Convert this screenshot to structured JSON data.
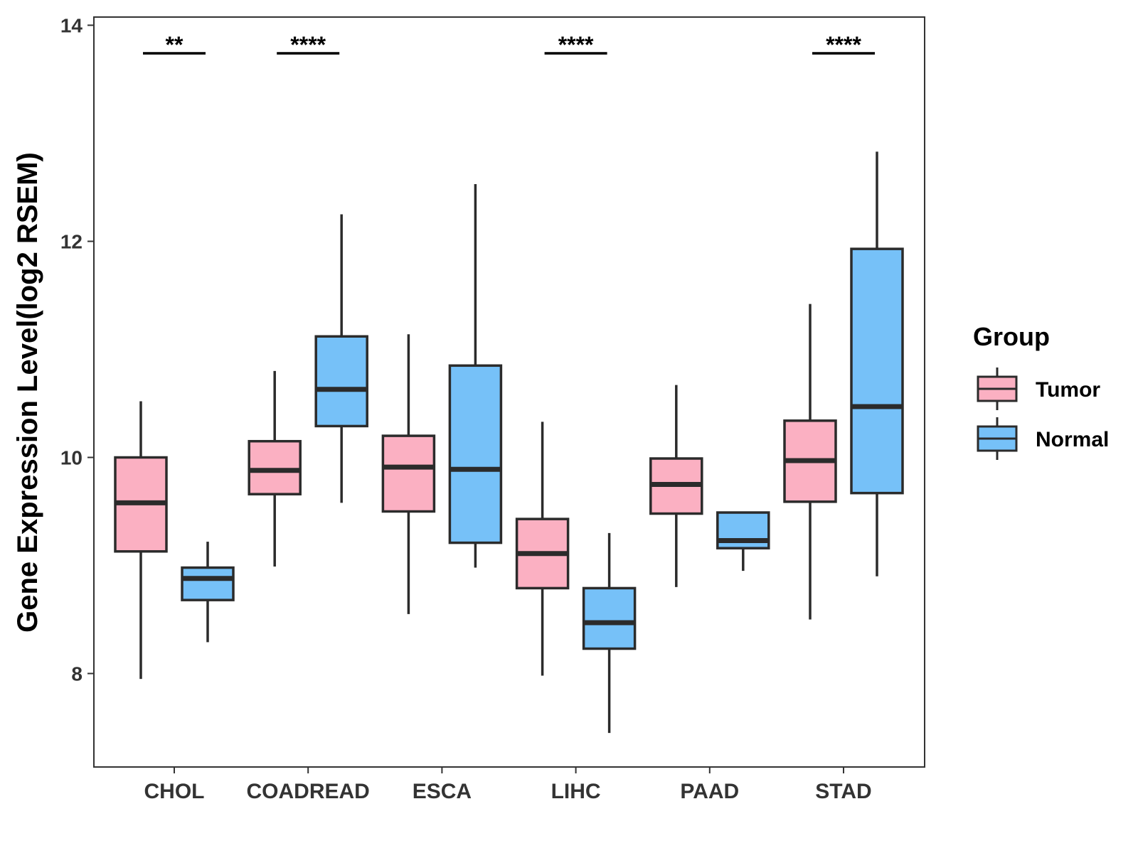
{
  "chart_data": {
    "type": "boxplot",
    "title": "",
    "xlabel": "",
    "ylabel": "Gene Expression Level(log2 RSEM)",
    "ylim": [
      7.2,
      14.1
    ],
    "yticks": [
      8,
      10,
      12,
      14
    ],
    "categories": [
      "CHOL",
      "COADREAD",
      "ESCA",
      "LIHC",
      "PAAD",
      "STAD"
    ],
    "legend": {
      "title": "Group",
      "position": "right",
      "items": [
        {
          "name": "Tumor",
          "color": "#fbb0c2"
        },
        {
          "name": "Normal",
          "color": "#76c1f8"
        }
      ]
    },
    "series": [
      {
        "name": "Tumor",
        "color": "#fbb0c2",
        "boxes": [
          {
            "category": "CHOL",
            "min": 7.95,
            "q1": 9.13,
            "median": 9.58,
            "q3": 10.0,
            "max": 10.52
          },
          {
            "category": "COADREAD",
            "min": 8.99,
            "q1": 9.66,
            "median": 9.88,
            "q3": 10.15,
            "max": 10.8
          },
          {
            "category": "ESCA",
            "min": 8.55,
            "q1": 9.5,
            "median": 9.91,
            "q3": 10.2,
            "max": 11.14
          },
          {
            "category": "LIHC",
            "min": 7.98,
            "q1": 8.79,
            "median": 9.11,
            "q3": 9.43,
            "max": 10.33
          },
          {
            "category": "PAAD",
            "min": 8.8,
            "q1": 9.48,
            "median": 9.75,
            "q3": 9.99,
            "max": 10.67
          },
          {
            "category": "STAD",
            "min": 8.5,
            "q1": 9.59,
            "median": 9.97,
            "q3": 10.34,
            "max": 11.42
          }
        ]
      },
      {
        "name": "Normal",
        "color": "#76c1f8",
        "boxes": [
          {
            "category": "CHOL",
            "min": 8.29,
            "q1": 8.68,
            "median": 8.88,
            "q3": 8.98,
            "max": 9.22
          },
          {
            "category": "COADREAD",
            "min": 9.58,
            "q1": 10.29,
            "median": 10.63,
            "q3": 11.12,
            "max": 12.25
          },
          {
            "category": "ESCA",
            "min": 8.98,
            "q1": 9.21,
            "median": 9.89,
            "q3": 10.85,
            "max": 12.53
          },
          {
            "category": "LIHC",
            "min": 7.45,
            "q1": 8.23,
            "median": 8.47,
            "q3": 8.79,
            "max": 9.3
          },
          {
            "category": "PAAD",
            "min": 8.95,
            "q1": 9.16,
            "median": 9.23,
            "q3": 9.49,
            "max": 9.49
          },
          {
            "category": "STAD",
            "min": 8.9,
            "q1": 9.67,
            "median": 10.47,
            "q3": 11.93,
            "max": 12.83
          }
        ]
      }
    ],
    "significance": [
      {
        "category": "CHOL",
        "label": "**"
      },
      {
        "category": "COADREAD",
        "label": "****"
      },
      {
        "category": "LIHC",
        "label": "****"
      },
      {
        "category": "STAD",
        "label": "****"
      }
    ]
  }
}
